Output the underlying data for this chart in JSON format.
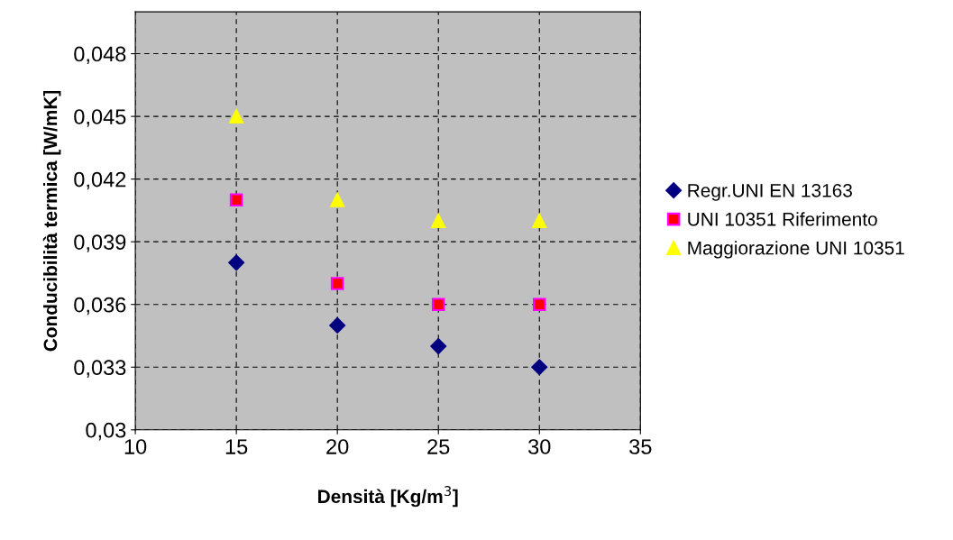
{
  "chart_data": {
    "type": "scatter",
    "xlabel": "Densità [Kg/m$^{3}$]",
    "ylabel": "Conducibilità termica [W/mK]",
    "x": [
      15,
      20,
      25,
      30
    ],
    "series": [
      {
        "name": "Regr.UNI EN 13163",
        "color": "#000080",
        "marker": "diamond",
        "values": [
          0.038,
          0.035,
          0.034,
          0.033
        ]
      },
      {
        "name": "UNI 10351 Riferimento",
        "color": "#ff0000",
        "marker": "square",
        "values": [
          0.041,
          0.037,
          0.036,
          0.036
        ]
      },
      {
        "name": "Maggiorazione UNI 10351",
        "color": "#ffff00",
        "marker": "triangle",
        "values": [
          0.045,
          0.041,
          0.04,
          0.04
        ]
      }
    ],
    "xlim": [
      10,
      35
    ],
    "xticks": [
      10,
      15,
      20,
      25,
      30,
      35
    ],
    "ylim": [
      0.03,
      0.05
    ],
    "yticks": [
      {
        "value": 0.03,
        "label": "0,03"
      },
      {
        "value": 0.033,
        "label": "0,033"
      },
      {
        "value": 0.036,
        "label": "0,036"
      },
      {
        "value": 0.039,
        "label": "0,039"
      },
      {
        "value": 0.042,
        "label": "0,042"
      },
      {
        "value": 0.045,
        "label": "0,045"
      },
      {
        "value": 0.048,
        "label": "0,048"
      }
    ],
    "grid": true,
    "legend": "right"
  }
}
